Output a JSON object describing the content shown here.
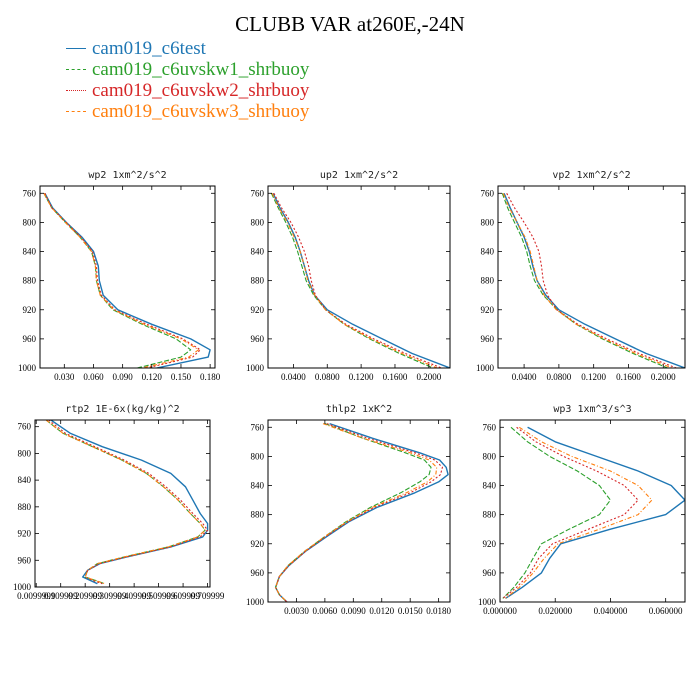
{
  "title": "CLUBB VAR at260E,-24N",
  "legend": [
    {
      "name": "cam019_c6test",
      "color": "#1f77b4"
    },
    {
      "name": "cam019_c6uvskw1_shrbuoy",
      "color": "#2ca02c"
    },
    {
      "name": "cam019_c6uvskw2_shrbuoy",
      "color": "#d62728"
    },
    {
      "name": "cam019_c6uvskw3_shrbuoy",
      "color": "#ff7f0e"
    }
  ],
  "chart_data": [
    {
      "type": "line",
      "title": "wp2  1xm^2/s^2",
      "xlim": [
        0.005,
        0.185
      ],
      "ylim": [
        750,
        1000
      ],
      "xticks": [
        0.03,
        0.06,
        0.09,
        0.12,
        0.15,
        0.18
      ],
      "xtick_labels": [
        "0.030",
        "0.060",
        "0.090",
        "0.120",
        "0.150",
        "0.180"
      ],
      "yticks": [
        760,
        800,
        840,
        880,
        920,
        960,
        1000
      ],
      "y": [
        760,
        780,
        800,
        820,
        840,
        860,
        880,
        900,
        920,
        940,
        960,
        975,
        985,
        1000
      ],
      "series": [
        {
          "name": "cam019_c6test",
          "x": [
            0.01,
            0.018,
            0.032,
            0.048,
            0.06,
            0.065,
            0.066,
            0.07,
            0.085,
            0.12,
            0.16,
            0.18,
            0.178,
            0.125
          ]
        },
        {
          "name": "cam019_c6uvskw1_shrbuoy",
          "x": [
            0.009,
            0.017,
            0.031,
            0.046,
            0.058,
            0.062,
            0.063,
            0.067,
            0.08,
            0.11,
            0.145,
            0.16,
            0.15,
            0.105
          ]
        },
        {
          "name": "cam019_c6uvskw2_shrbuoy",
          "x": [
            0.01,
            0.017,
            0.032,
            0.047,
            0.059,
            0.063,
            0.064,
            0.068,
            0.082,
            0.115,
            0.152,
            0.17,
            0.162,
            0.115
          ]
        },
        {
          "name": "cam019_c6uvskw3_shrbuoy",
          "x": [
            0.009,
            0.017,
            0.031,
            0.046,
            0.058,
            0.062,
            0.063,
            0.067,
            0.081,
            0.112,
            0.15,
            0.168,
            0.158,
            0.11
          ]
        }
      ]
    },
    {
      "type": "line",
      "title": "up2  1xm^2/s^2",
      "xlim": [
        0.01,
        0.225
      ],
      "ylim": [
        750,
        1000
      ],
      "xticks": [
        0.04,
        0.08,
        0.12,
        0.16,
        0.2
      ],
      "xtick_labels": [
        "0.0400",
        "0.0800",
        "0.1200",
        "0.1600",
        "0.2000"
      ],
      "yticks": [
        760,
        800,
        840,
        880,
        920,
        960,
        1000
      ],
      "y": [
        760,
        780,
        800,
        820,
        840,
        860,
        880,
        900,
        920,
        940,
        960,
        980,
        1000
      ],
      "series": [
        {
          "name": "cam019_c6test",
          "x": [
            0.016,
            0.024,
            0.034,
            0.042,
            0.048,
            0.053,
            0.058,
            0.065,
            0.08,
            0.11,
            0.145,
            0.18,
            0.225
          ]
        },
        {
          "name": "cam019_c6uvskw1_shrbuoy",
          "x": [
            0.014,
            0.022,
            0.031,
            0.039,
            0.045,
            0.05,
            0.055,
            0.064,
            0.078,
            0.1,
            0.13,
            0.165,
            0.205
          ]
        },
        {
          "name": "cam019_c6uvskw2_shrbuoy",
          "x": [
            0.017,
            0.026,
            0.037,
            0.046,
            0.053,
            0.058,
            0.061,
            0.066,
            0.078,
            0.102,
            0.135,
            0.172,
            0.215
          ]
        },
        {
          "name": "cam019_c6uvskw3_shrbuoy",
          "x": [
            0.015,
            0.023,
            0.033,
            0.041,
            0.048,
            0.053,
            0.057,
            0.065,
            0.078,
            0.1,
            0.132,
            0.168,
            0.21
          ]
        }
      ]
    },
    {
      "type": "line",
      "title": "vp2  1xm^2/s^2",
      "xlim": [
        0.01,
        0.225
      ],
      "ylim": [
        750,
        1000
      ],
      "xticks": [
        0.04,
        0.08,
        0.12,
        0.16,
        0.2
      ],
      "xtick_labels": [
        "0.0400",
        "0.0800",
        "0.1200",
        "0.1600",
        "0.2000"
      ],
      "yticks": [
        760,
        800,
        840,
        880,
        920,
        960,
        1000
      ],
      "y": [
        760,
        780,
        800,
        820,
        840,
        860,
        880,
        900,
        920,
        940,
        960,
        980,
        1000
      ],
      "series": [
        {
          "name": "cam019_c6test",
          "x": [
            0.017,
            0.024,
            0.032,
            0.04,
            0.046,
            0.05,
            0.055,
            0.065,
            0.08,
            0.11,
            0.145,
            0.18,
            0.225
          ]
        },
        {
          "name": "cam019_c6uvskw1_shrbuoy",
          "x": [
            0.015,
            0.021,
            0.029,
            0.037,
            0.043,
            0.047,
            0.052,
            0.062,
            0.078,
            0.1,
            0.13,
            0.165,
            0.205
          ]
        },
        {
          "name": "cam019_c6uvskw2_shrbuoy",
          "x": [
            0.02,
            0.029,
            0.04,
            0.05,
            0.057,
            0.06,
            0.062,
            0.067,
            0.078,
            0.102,
            0.135,
            0.172,
            0.215
          ]
        },
        {
          "name": "cam019_c6uvskw3_shrbuoy",
          "x": [
            0.016,
            0.023,
            0.032,
            0.041,
            0.047,
            0.051,
            0.055,
            0.063,
            0.077,
            0.1,
            0.132,
            0.168,
            0.21
          ]
        }
      ]
    },
    {
      "type": "line",
      "title": "rtp2  1E-6x(kg/kg)^2",
      "xlim": [
        0.005,
        0.72
      ],
      "ylim": [
        750,
        1000
      ],
      "xticks": [
        0.0099999,
        0.109999,
        0.209999,
        0.309999,
        0.409999,
        0.509999,
        0.609999,
        0.709999
      ],
      "xtick_labels": [
        "0.0099999",
        "0.109999",
        "0.209999",
        "0.309999",
        "0.409999",
        "0.509999",
        "0.609999",
        "0.709999"
      ],
      "yticks": [
        760,
        800,
        840,
        880,
        920,
        960,
        1000
      ],
      "y": [
        750,
        770,
        790,
        810,
        830,
        850,
        870,
        890,
        905,
        915,
        925,
        940,
        955,
        965,
        975,
        985,
        990,
        995
      ],
      "series": [
        {
          "name": "cam019_c6test",
          "x": [
            0.07,
            0.15,
            0.28,
            0.44,
            0.56,
            0.62,
            0.65,
            0.68,
            0.71,
            0.71,
            0.69,
            0.56,
            0.38,
            0.27,
            0.22,
            0.2,
            0.23,
            0.26
          ]
        },
        {
          "name": "cam019_c6uvskw1_shrbuoy",
          "x": [
            0.05,
            0.12,
            0.24,
            0.36,
            0.46,
            0.53,
            0.59,
            0.64,
            0.68,
            0.7,
            0.67,
            0.55,
            0.37,
            0.26,
            0.22,
            0.21,
            0.25,
            0.29
          ]
        },
        {
          "name": "cam019_c6uvskw2_shrbuoy",
          "x": [
            0.06,
            0.13,
            0.25,
            0.37,
            0.47,
            0.54,
            0.6,
            0.65,
            0.69,
            0.71,
            0.68,
            0.56,
            0.38,
            0.27,
            0.22,
            0.21,
            0.24,
            0.28
          ]
        },
        {
          "name": "cam019_c6uvskw3_shrbuoy",
          "x": [
            0.05,
            0.12,
            0.24,
            0.36,
            0.46,
            0.53,
            0.59,
            0.64,
            0.68,
            0.7,
            0.67,
            0.55,
            0.37,
            0.26,
            0.22,
            0.21,
            0.25,
            0.29
          ]
        }
      ]
    },
    {
      "type": "line",
      "title": "thlp2  1xK^2",
      "xlim": [
        0.0,
        0.0192
      ],
      "ylim": [
        750,
        1000
      ],
      "xticks": [
        0.003,
        0.006,
        0.009,
        0.012,
        0.015,
        0.018
      ],
      "xtick_labels": [
        "0.0030",
        "0.0060",
        "0.0090",
        "0.0120",
        "0.0150",
        "0.0180"
      ],
      "yticks": [
        760,
        800,
        840,
        880,
        920,
        960,
        1000
      ],
      "y": [
        755,
        775,
        795,
        805,
        815,
        825,
        835,
        850,
        870,
        890,
        910,
        930,
        950,
        965,
        980,
        990,
        1000
      ],
      "series": [
        {
          "name": "cam019_c6test",
          "x": [
            0.0065,
            0.011,
            0.016,
            0.0181,
            0.0188,
            0.019,
            0.018,
            0.0155,
            0.0115,
            0.0085,
            0.0062,
            0.004,
            0.0022,
            0.0012,
            0.0008,
            0.0012,
            0.002
          ]
        },
        {
          "name": "cam019_c6uvskw1_shrbuoy",
          "x": [
            0.006,
            0.01,
            0.0145,
            0.0165,
            0.0172,
            0.017,
            0.016,
            0.014,
            0.0108,
            0.0082,
            0.006,
            0.0039,
            0.0021,
            0.0012,
            0.0008,
            0.0012,
            0.002
          ]
        },
        {
          "name": "cam019_c6uvskw2_shrbuoy",
          "x": [
            0.0062,
            0.0105,
            0.0155,
            0.0176,
            0.0184,
            0.0182,
            0.0172,
            0.015,
            0.0112,
            0.0084,
            0.0061,
            0.004,
            0.0022,
            0.0012,
            0.0008,
            0.0012,
            0.002
          ]
        },
        {
          "name": "cam019_c6uvskw3_shrbuoy",
          "x": [
            0.0058,
            0.01,
            0.015,
            0.017,
            0.0178,
            0.0177,
            0.0168,
            0.0146,
            0.011,
            0.0083,
            0.006,
            0.0039,
            0.0021,
            0.0012,
            0.0008,
            0.0012,
            0.002
          ]
        }
      ]
    },
    {
      "type": "line",
      "title": "wp3  1xm^3/s^3",
      "xlim": [
        0.0,
        0.067
      ],
      "ylim": [
        750,
        1000
      ],
      "xticks": [
        0.0,
        0.02,
        0.04,
        0.06
      ],
      "xtick_labels": [
        "0.000000",
        "0.020000",
        "0.040000",
        "0.060000"
      ],
      "yticks": [
        760,
        800,
        840,
        880,
        920,
        960,
        1000
      ],
      "y": [
        760,
        780,
        800,
        820,
        840,
        860,
        880,
        900,
        920,
        940,
        960,
        980,
        995
      ],
      "series": [
        {
          "name": "cam019_c6test",
          "x": [
            0.01,
            0.02,
            0.035,
            0.05,
            0.062,
            0.067,
            0.06,
            0.04,
            0.022,
            0.018,
            0.015,
            0.008,
            0.002
          ]
        },
        {
          "name": "cam019_c6uvskw1_shrbuoy",
          "x": [
            0.004,
            0.01,
            0.018,
            0.028,
            0.036,
            0.04,
            0.036,
            0.025,
            0.015,
            0.012,
            0.009,
            0.005,
            0.001
          ]
        },
        {
          "name": "cam019_c6uvskw2_shrbuoy",
          "x": [
            0.006,
            0.013,
            0.023,
            0.035,
            0.045,
            0.05,
            0.045,
            0.032,
            0.019,
            0.014,
            0.011,
            0.006,
            0.001
          ]
        },
        {
          "name": "cam019_c6uvskw3_shrbuoy",
          "x": [
            0.007,
            0.015,
            0.026,
            0.04,
            0.05,
            0.055,
            0.05,
            0.036,
            0.021,
            0.016,
            0.012,
            0.007,
            0.002
          ]
        }
      ]
    }
  ]
}
